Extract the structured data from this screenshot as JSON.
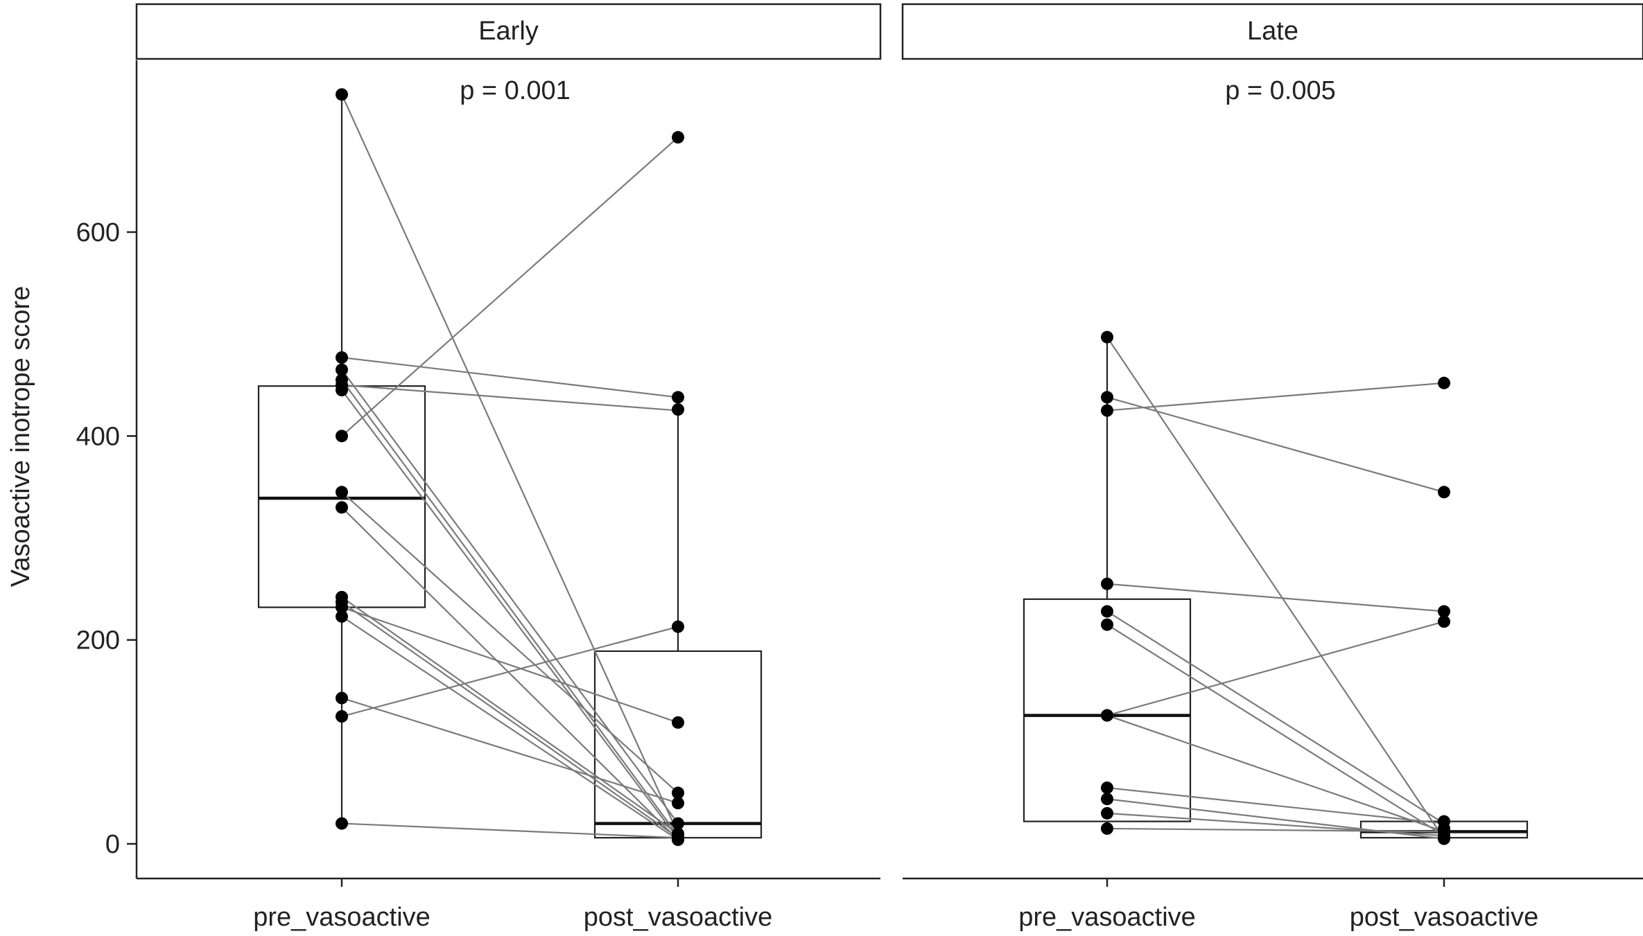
{
  "chart_data": {
    "type": "box",
    "ylabel": "Vasoactive inotrope score",
    "xlabel": "",
    "ylim": [
      -30,
      765
    ],
    "yticks": [
      0,
      200,
      400,
      600
    ],
    "categories": [
      "pre_vasoactive",
      "post_vasoactive"
    ],
    "grid": false,
    "panels": [
      {
        "strip_label": "Early",
        "annotation": "p = 0.001",
        "box": {
          "pre_vasoactive": {
            "min": 20,
            "q1": 232,
            "median": 339,
            "q3": 449,
            "max": 735
          },
          "post_vasoactive": {
            "min": 6,
            "q1": 6,
            "median": 20,
            "q3": 189,
            "max": 426
          }
        },
        "pairs": [
          [
            735,
            10
          ],
          [
            477,
            438
          ],
          [
            465,
            20
          ],
          [
            455,
            8
          ],
          [
            450,
            425
          ],
          [
            445,
            5
          ],
          [
            400,
            693
          ],
          [
            345,
            50
          ],
          [
            330,
            4
          ],
          [
            242,
            10
          ],
          [
            237,
            6
          ],
          [
            232,
            119
          ],
          [
            223,
            4
          ],
          [
            143,
            40
          ],
          [
            125,
            213
          ],
          [
            20,
            6
          ]
        ],
        "extra_post_points": [
          693,
          438,
          426,
          213,
          119,
          50,
          40,
          20,
          10,
          8,
          5,
          4
        ]
      },
      {
        "strip_label": "Late",
        "annotation": "p = 0.005",
        "box": {
          "pre_vasoactive": {
            "min": 15,
            "q1": 22,
            "median": 126,
            "q3": 240,
            "max": 497
          },
          "post_vasoactive": {
            "min": 6,
            "q1": 6,
            "median": 12,
            "q3": 22,
            "max": 22
          }
        },
        "pairs": [
          [
            497,
            5
          ],
          [
            438,
            345
          ],
          [
            425,
            452
          ],
          [
            255,
            228
          ],
          [
            228,
            20
          ],
          [
            215,
            8
          ],
          [
            126,
            218
          ],
          [
            126,
            12
          ],
          [
            55,
            20
          ],
          [
            44,
            5
          ],
          [
            30,
            8
          ],
          [
            15,
            12
          ]
        ],
        "extra_post_points": [
          452,
          345,
          228,
          218,
          22,
          15,
          12,
          8,
          5
        ]
      }
    ],
    "colors": {
      "point": "#000000",
      "pair_line": "#7a7a7a",
      "box": "#222222",
      "strip_fill": "#ffffff"
    }
  }
}
